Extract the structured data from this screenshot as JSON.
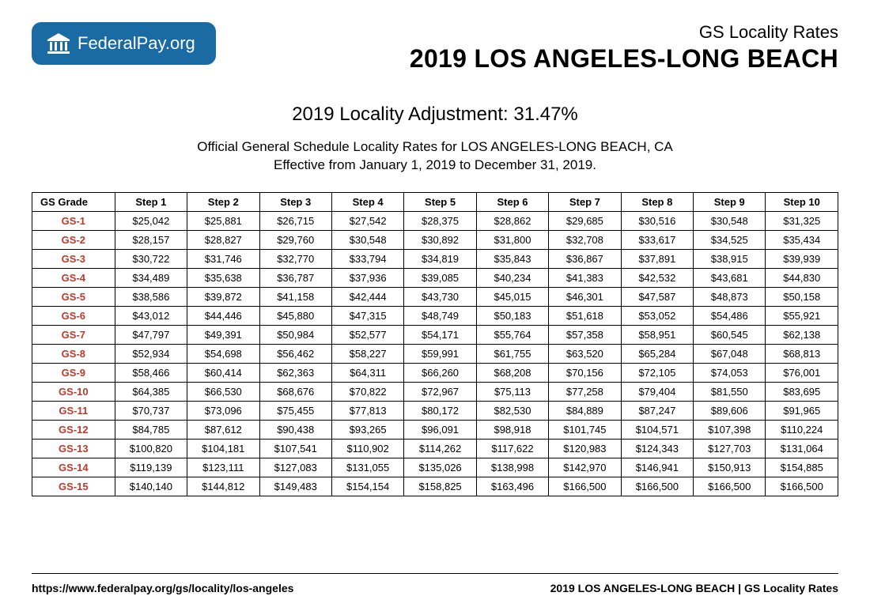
{
  "logo": {
    "name": "Federal",
    "suffix": "Pay.org"
  },
  "header": {
    "subtitle": "GS Locality Rates",
    "title": "2019 LOS ANGELES-LONG BEACH"
  },
  "adjustment": "2019 Locality Adjustment: 31.47%",
  "intro_line1": "Official General Schedule Locality Rates for LOS ANGELES-LONG BEACH, CA",
  "intro_line2": "Effective from January 1, 2019 to December 31, 2019.",
  "table": {
    "columns": [
      "GS Grade",
      "Step 1",
      "Step 2",
      "Step 3",
      "Step 4",
      "Step 5",
      "Step 6",
      "Step 7",
      "Step 8",
      "Step 9",
      "Step 10"
    ],
    "rows": [
      {
        "grade": "GS-1",
        "cells": [
          "$25,042",
          "$25,881",
          "$26,715",
          "$27,542",
          "$28,375",
          "$28,862",
          "$29,685",
          "$30,516",
          "$30,548",
          "$31,325"
        ]
      },
      {
        "grade": "GS-2",
        "cells": [
          "$28,157",
          "$28,827",
          "$29,760",
          "$30,548",
          "$30,892",
          "$31,800",
          "$32,708",
          "$33,617",
          "$34,525",
          "$35,434"
        ]
      },
      {
        "grade": "GS-3",
        "cells": [
          "$30,722",
          "$31,746",
          "$32,770",
          "$33,794",
          "$34,819",
          "$35,843",
          "$36,867",
          "$37,891",
          "$38,915",
          "$39,939"
        ]
      },
      {
        "grade": "GS-4",
        "cells": [
          "$34,489",
          "$35,638",
          "$36,787",
          "$37,936",
          "$39,085",
          "$40,234",
          "$41,383",
          "$42,532",
          "$43,681",
          "$44,830"
        ]
      },
      {
        "grade": "GS-5",
        "cells": [
          "$38,586",
          "$39,872",
          "$41,158",
          "$42,444",
          "$43,730",
          "$45,015",
          "$46,301",
          "$47,587",
          "$48,873",
          "$50,158"
        ]
      },
      {
        "grade": "GS-6",
        "cells": [
          "$43,012",
          "$44,446",
          "$45,880",
          "$47,315",
          "$48,749",
          "$50,183",
          "$51,618",
          "$53,052",
          "$54,486",
          "$55,921"
        ]
      },
      {
        "grade": "GS-7",
        "cells": [
          "$47,797",
          "$49,391",
          "$50,984",
          "$52,577",
          "$54,171",
          "$55,764",
          "$57,358",
          "$58,951",
          "$60,545",
          "$62,138"
        ]
      },
      {
        "grade": "GS-8",
        "cells": [
          "$52,934",
          "$54,698",
          "$56,462",
          "$58,227",
          "$59,991",
          "$61,755",
          "$63,520",
          "$65,284",
          "$67,048",
          "$68,813"
        ]
      },
      {
        "grade": "GS-9",
        "cells": [
          "$58,466",
          "$60,414",
          "$62,363",
          "$64,311",
          "$66,260",
          "$68,208",
          "$70,156",
          "$72,105",
          "$74,053",
          "$76,001"
        ]
      },
      {
        "grade": "GS-10",
        "cells": [
          "$64,385",
          "$66,530",
          "$68,676",
          "$70,822",
          "$72,967",
          "$75,113",
          "$77,258",
          "$79,404",
          "$81,550",
          "$83,695"
        ]
      },
      {
        "grade": "GS-11",
        "cells": [
          "$70,737",
          "$73,096",
          "$75,455",
          "$77,813",
          "$80,172",
          "$82,530",
          "$84,889",
          "$87,247",
          "$89,606",
          "$91,965"
        ]
      },
      {
        "grade": "GS-12",
        "cells": [
          "$84,785",
          "$87,612",
          "$90,438",
          "$93,265",
          "$96,091",
          "$98,918",
          "$101,745",
          "$104,571",
          "$107,398",
          "$110,224"
        ]
      },
      {
        "grade": "GS-13",
        "cells": [
          "$100,820",
          "$104,181",
          "$107,541",
          "$110,902",
          "$114,262",
          "$117,622",
          "$120,983",
          "$124,343",
          "$127,703",
          "$131,064"
        ]
      },
      {
        "grade": "GS-14",
        "cells": [
          "$119,139",
          "$123,111",
          "$127,083",
          "$131,055",
          "$135,026",
          "$138,998",
          "$142,970",
          "$146,941",
          "$150,913",
          "$154,885"
        ]
      },
      {
        "grade": "GS-15",
        "cells": [
          "$140,140",
          "$144,812",
          "$149,483",
          "$154,154",
          "$158,825",
          "$163,496",
          "$166,500",
          "$166,500",
          "$166,500",
          "$166,500"
        ]
      }
    ],
    "grade_color": "#c0392b",
    "border_color": "#000000",
    "font_size": 13
  },
  "footer": {
    "url": "https://www.federalpay.org/gs/locality/los-angeles",
    "right": "2019 LOS ANGELES-LONG BEACH | GS Locality Rates"
  },
  "colors": {
    "badge_bg": "#1a6aa3",
    "badge_fg": "#ffffff",
    "page_bg": "#ffffff",
    "text": "#000000"
  }
}
